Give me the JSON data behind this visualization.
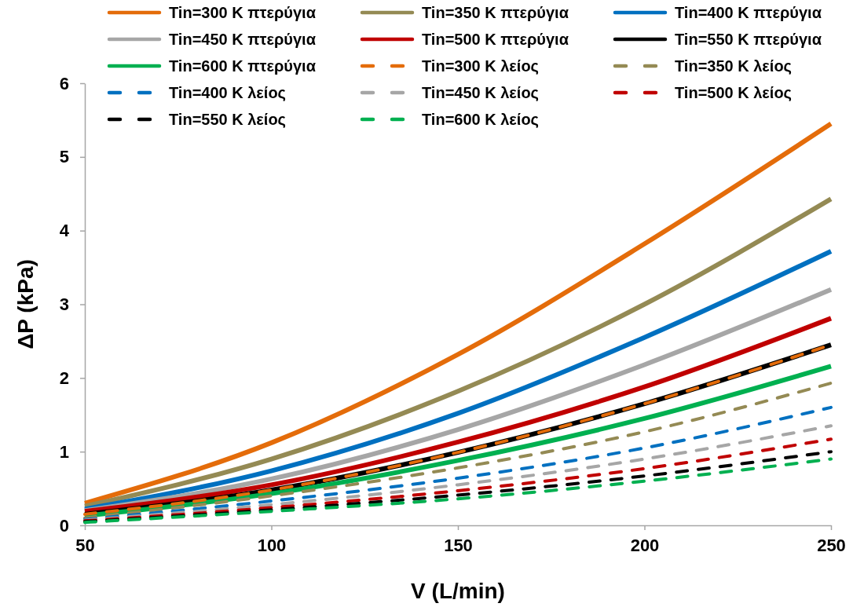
{
  "chart_data": {
    "type": "line",
    "xlabel": "V (L/min)",
    "ylabel": "ΔP (kPa)",
    "x": [
      50,
      100,
      150,
      200,
      250
    ],
    "xlim": [
      50,
      250
    ],
    "xticks": [
      50,
      100,
      150,
      200,
      250
    ],
    "ylim": [
      0,
      6
    ],
    "yticks": [
      0,
      1,
      2,
      3,
      4,
      5,
      6
    ],
    "grid": false,
    "legend": "top",
    "marker": "none",
    "line_style": "solid",
    "series": [
      {
        "name": "Tin=300 K πτερύγια",
        "color": "#e46c0a",
        "values": [
          0.3,
          1.12,
          2.32,
          3.82,
          5.45
        ]
      },
      {
        "name": "Tin=350 K πτερύγια",
        "color": "#948a54",
        "values": [
          0.26,
          0.9,
          1.82,
          3.0,
          4.43
        ]
      },
      {
        "name": "Tin=400 K πτερύγια",
        "color": "#0070c0",
        "values": [
          0.22,
          0.74,
          1.52,
          2.55,
          3.72
        ]
      },
      {
        "name": "Tin=450 K πτερύγια",
        "color": "#a6a6a6",
        "values": [
          0.2,
          0.63,
          1.3,
          2.18,
          3.2
        ]
      },
      {
        "name": "Tin=500 K πτερύγια",
        "color": "#c00000",
        "values": [
          0.19,
          0.55,
          1.13,
          1.88,
          2.81
        ]
      },
      {
        "name": "Tin=550 K πτερύγια",
        "color": "#000000",
        "values": [
          0.15,
          0.48,
          0.99,
          1.65,
          2.45
        ]
      },
      {
        "name": "Tin=600 K πτερύγια",
        "color": "#00b050",
        "values": [
          0.13,
          0.43,
          0.88,
          1.45,
          2.16
        ]
      },
      {
        "name": "Tin=300 K λείος",
        "color": "#e46c0a",
        "line_style": "dashed",
        "values": [
          0.15,
          0.48,
          0.99,
          1.65,
          2.45
        ]
      },
      {
        "name": "Tin=350 K λείος",
        "color": "#948a54",
        "line_style": "dashed",
        "values": [
          0.1,
          0.4,
          0.78,
          1.27,
          1.93
        ]
      },
      {
        "name": "Tin=400 K λείος",
        "color": "#0070c0",
        "line_style": "dashed",
        "values": [
          0.08,
          0.33,
          0.64,
          1.05,
          1.6
        ]
      },
      {
        "name": "Tin=450 K λείος",
        "color": "#a6a6a6",
        "line_style": "dashed",
        "values": [
          0.07,
          0.28,
          0.55,
          0.9,
          1.35
        ]
      },
      {
        "name": "Tin=500 K λείος",
        "color": "#c00000",
        "line_style": "dashed",
        "values": [
          0.06,
          0.24,
          0.47,
          0.77,
          1.17
        ]
      },
      {
        "name": "Tin=550 K λείος",
        "color": "#000000",
        "line_style": "dashed",
        "values": [
          0.05,
          0.21,
          0.41,
          0.67,
          1.0
        ]
      },
      {
        "name": "Tin=600 K λείος",
        "color": "#00b050",
        "line_style": "dashed",
        "values": [
          0.04,
          0.19,
          0.36,
          0.6,
          0.9
        ]
      }
    ]
  }
}
